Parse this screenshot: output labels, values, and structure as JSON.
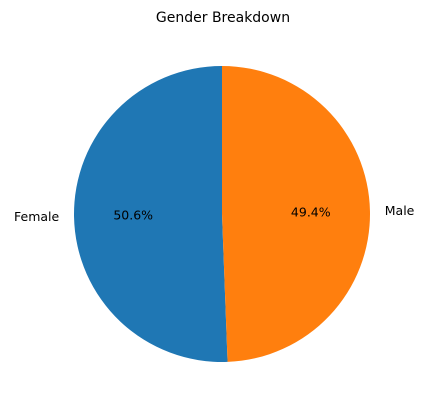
{
  "chart_data": {
    "type": "pie",
    "title": "Gender Breakdown",
    "slices": [
      {
        "label": "Female",
        "value": 50.6,
        "percent_label": "50.6%",
        "color": "#1f77b4"
      },
      {
        "label": "Male",
        "value": 49.4,
        "percent_label": "49.4%",
        "color": "#ff7f0e"
      }
    ],
    "start_angle_deg": 90,
    "direction": "counterclockwise",
    "legend": "none"
  }
}
